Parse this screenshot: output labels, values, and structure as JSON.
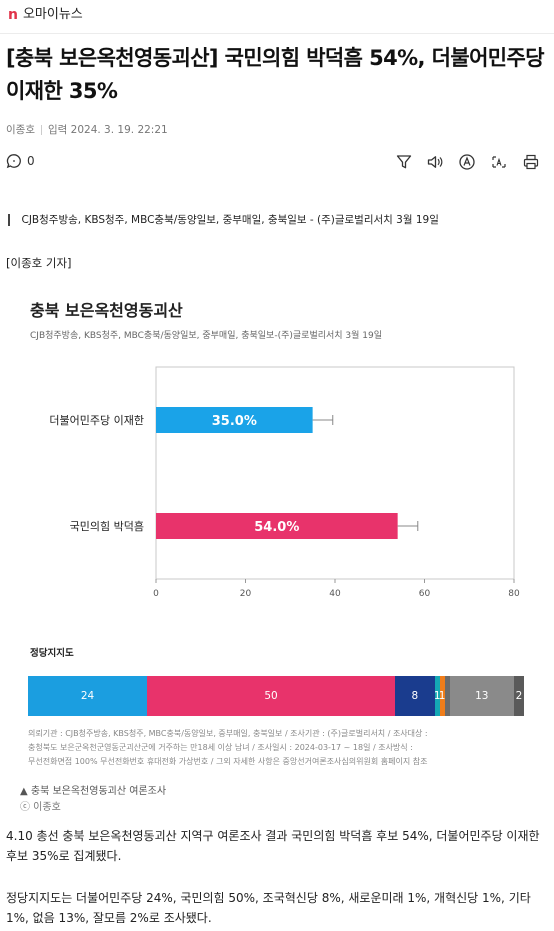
{
  "site": {
    "brand_mark": "n",
    "brand_name": "오마이뉴스"
  },
  "article": {
    "headline": "[충북 보은옥천영동괴산] 국민의힘 박덕흠 54%, 더불어민주당 이재한 35%",
    "author": "이종호",
    "input_label": "입력",
    "date": "2024. 3. 19. 22:21",
    "comment_count": "0",
    "quote": "CJB청주방송, KBS청주, MBC충북/동양일보, 중부매일, 충북일보 - (주)글로벌리서치 3월 19일",
    "reporter_tag": "[이종호 기자]",
    "image_caption": "▲ 충북 보은옥천영동괴산 여론조사",
    "image_credit": "ⓒ 이종호",
    "paragraph1": "4.10 총선 충북 보은옥천영동괴산 지역구 여론조사 결과 국민의힘 박덕흠 후보 54%, 더불어민주당 이재한 후보 35%로 집계됐다.",
    "paragraph2": "정당지지도는 더불어민주당 24%, 국민의힘 50%, 조국혁신당 8%, 새로운미래 1%, 개혁신당 1%, 기타 1%, 없음 13%, 잘모름 2%로 조사됐다."
  },
  "toolbar_icons": [
    "comment-icon",
    "filter-icon",
    "speaker-icon",
    "translate-icon",
    "text-size-icon",
    "print-icon"
  ],
  "figure": {
    "title": "충북 보은옥천영동괴산",
    "subtitle": "CJB청주방송, KBS청주, MBC충북/동양일보, 중부매일, 충북일보-(주)글로벌리서치 3월 19일",
    "party_title": "정당지지도",
    "notes": [
      "의뢰기관 : CJB청주방송, KBS청주, MBC충북/동양일보, 중부매일, 충북일보 / 조사기관 : (주)글로벌리서치 / 조사대상 :",
      "충청북도 보은군옥천군영동군괴산군에 거주하는 만18세 이상 남녀 / 조사일시 : 2024-03-17 ~ 18일 / 조사방식 :",
      "무선전화면접 100% 무선전화번호 휴대전화 가상번호 / 그외 자세한 사항은 중앙선거여론조사심의위원회 홈페이지 참조"
    ]
  },
  "chart_data": [
    {
      "type": "bar",
      "orientation": "horizontal",
      "categories": [
        "더불어민주당 이재한",
        "국민의힘 박덕흠"
      ],
      "values": [
        35.0,
        54.0
      ],
      "value_labels": [
        "35.0%",
        "54.0%"
      ],
      "error_high": [
        39.5,
        58.5
      ],
      "colors": [
        "#1aa3e8",
        "#e8336b"
      ],
      "xlim": [
        0,
        80
      ],
      "xticks": [
        "0",
        "20",
        "40",
        "60",
        "80"
      ],
      "grid": false
    },
    {
      "type": "bar",
      "orientation": "stacked",
      "title": "정당지지도",
      "segments": [
        {
          "value": 24,
          "label": "24",
          "color": "#1b9ee0"
        },
        {
          "value": 50,
          "label": "50",
          "color": "#e8336b"
        },
        {
          "value": 8,
          "label": "8",
          "color": "#1a3c8e"
        },
        {
          "value": 1,
          "label": "1",
          "color": "#14a8b4"
        },
        {
          "value": 1,
          "label": "1",
          "color": "#f07d1a"
        },
        {
          "value": 1,
          "label": "",
          "color": "#6b6b6b"
        },
        {
          "value": 13,
          "label": "13",
          "color": "#8a8a8a"
        },
        {
          "value": 2,
          "label": "2",
          "color": "#5a5a5a"
        }
      ]
    }
  ]
}
